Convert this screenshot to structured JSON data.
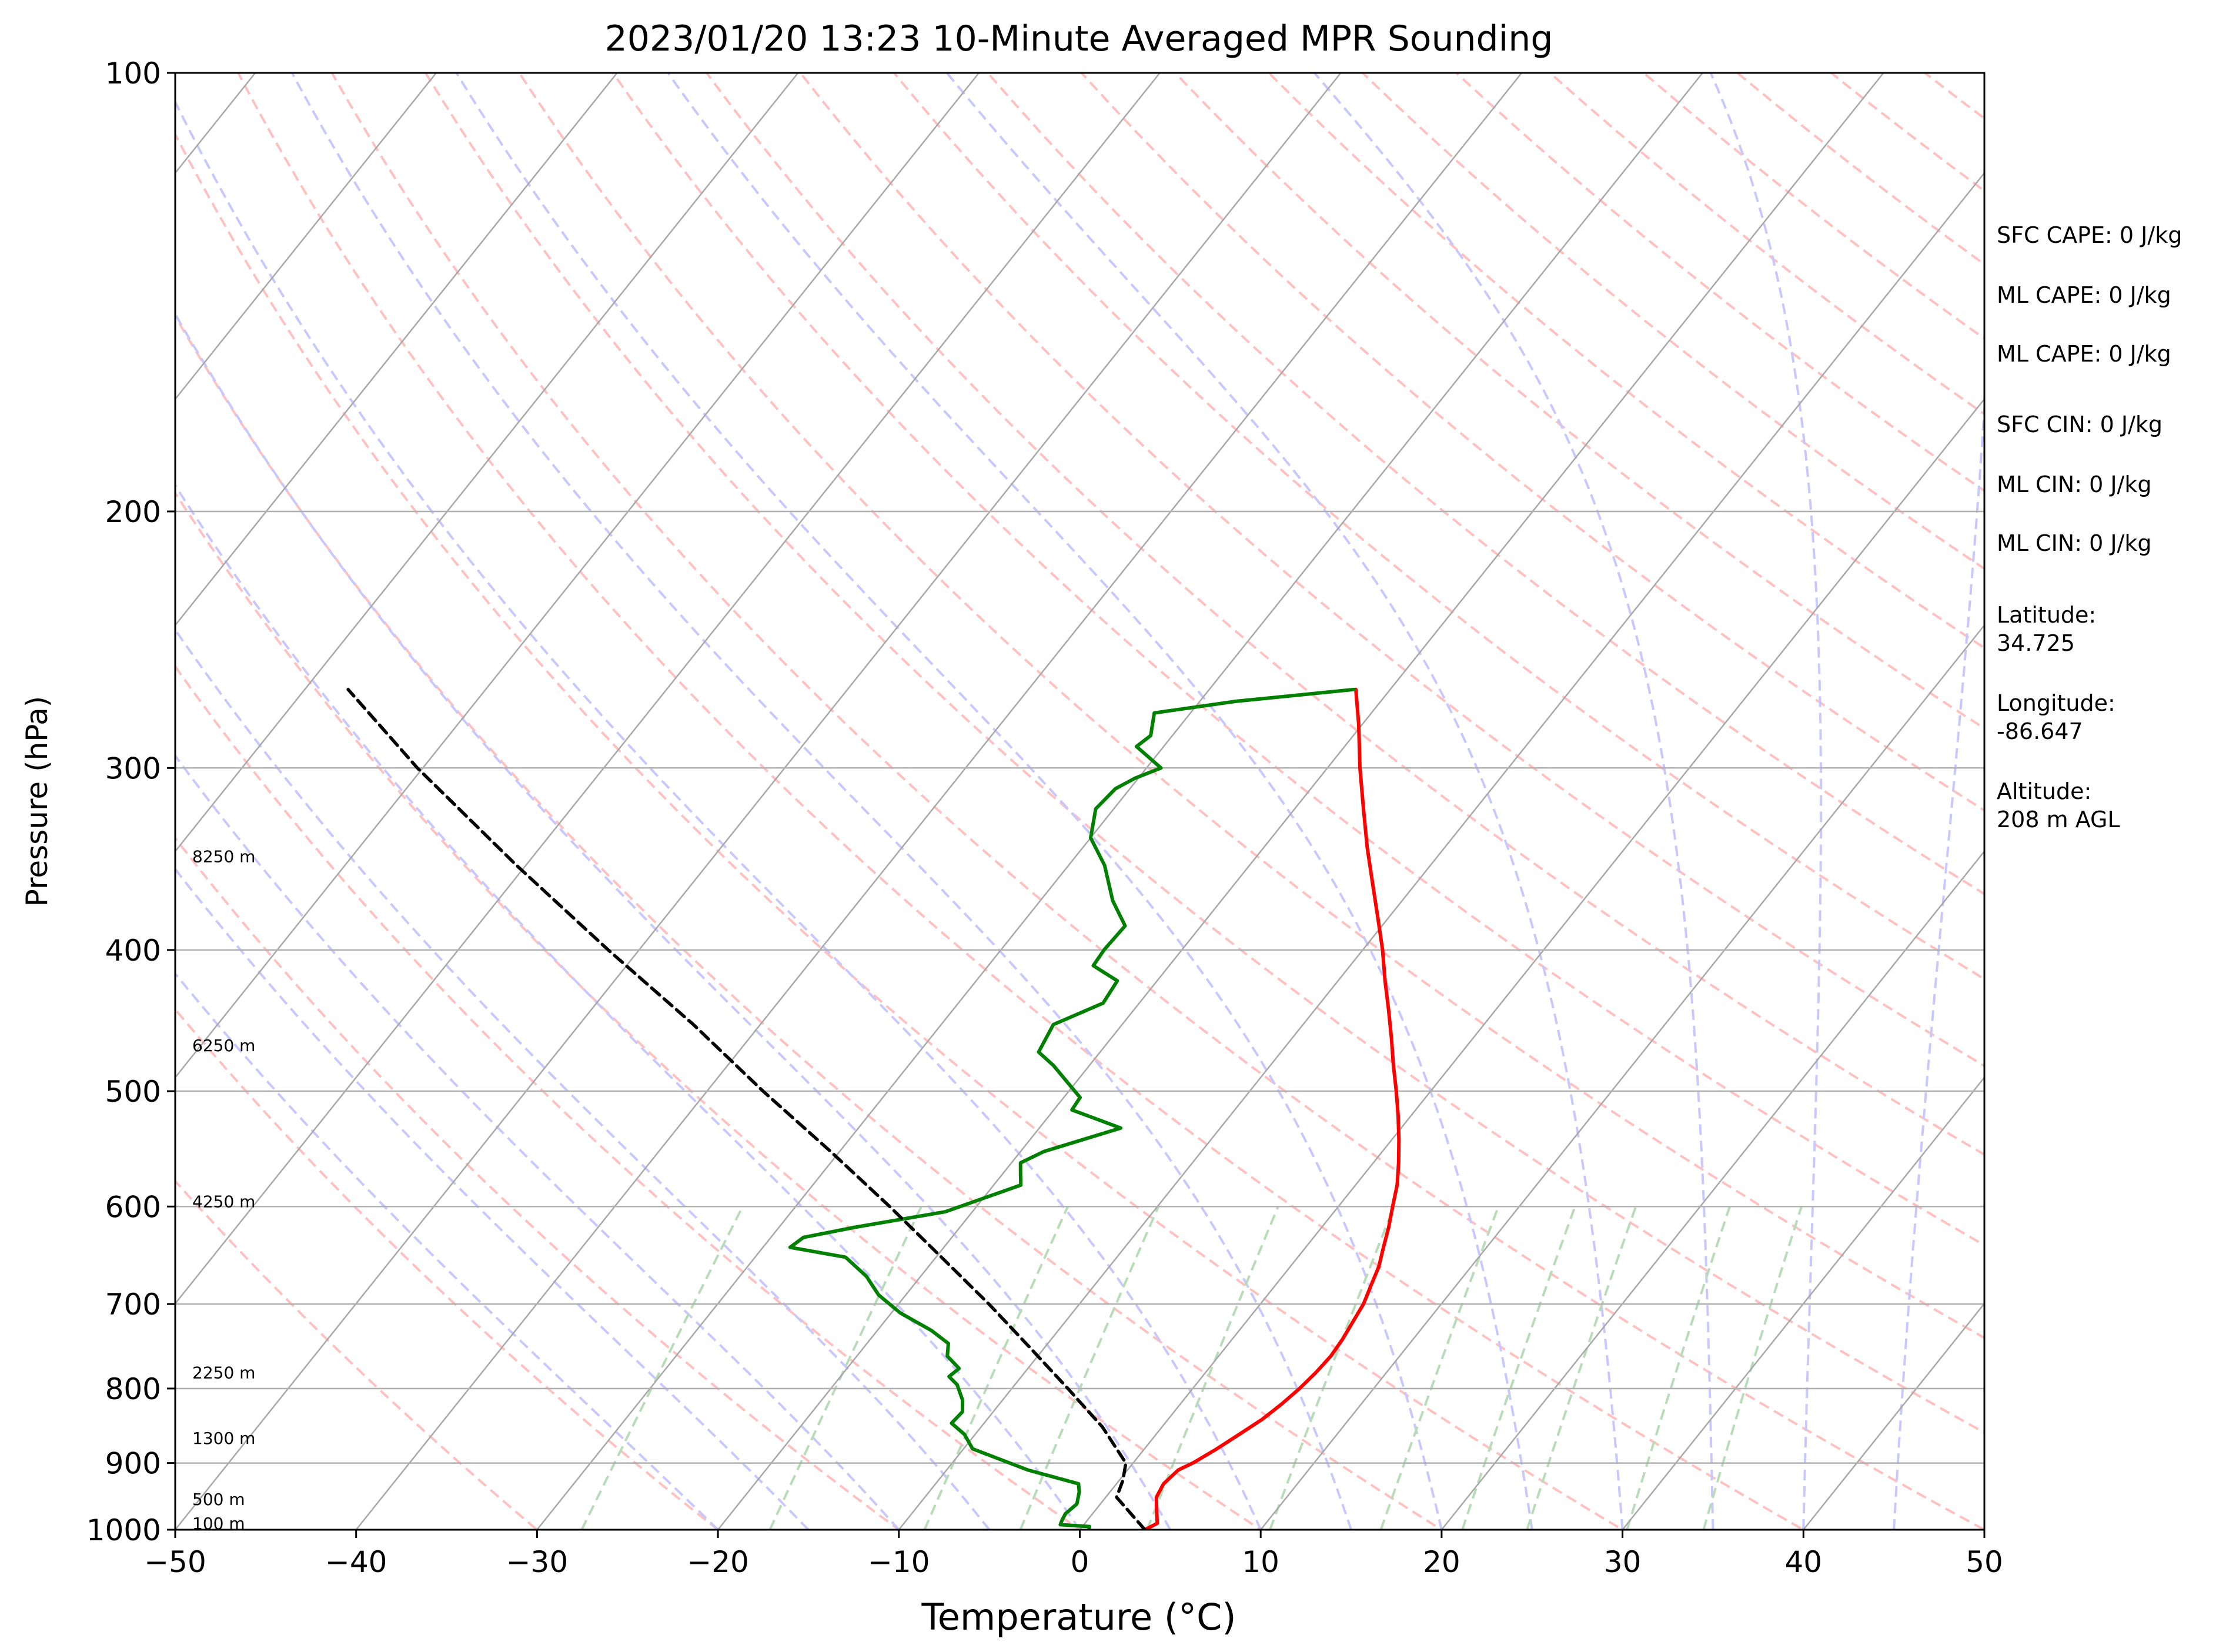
{
  "chart_data": {
    "type": "line",
    "title": "2023/01/20 13:23 10-Minute Averaged MPR Sounding",
    "xlabel": "Temperature (°C)",
    "ylabel": "Pressure (hPa)",
    "xlim": [
      -50,
      50
    ],
    "ylim": [
      1000,
      100
    ],
    "y_scale": "log",
    "x_ticks": [
      "−50",
      "−40",
      "−30",
      "−20",
      "−10",
      "0",
      "10",
      "20",
      "30",
      "40",
      "50"
    ],
    "y_ticks": [
      "100",
      "200",
      "300",
      "400",
      "500",
      "600",
      "700",
      "800",
      "900",
      "1000"
    ],
    "height_labels": [
      {
        "p": 990,
        "text": "100 m"
      },
      {
        "p": 953,
        "text": "500 m"
      },
      {
        "p": 865,
        "text": "1300 m"
      },
      {
        "p": 780,
        "text": "2250 m"
      },
      {
        "p": 595,
        "text": "4250 m"
      },
      {
        "p": 465,
        "text": "6250 m"
      },
      {
        "p": 345,
        "text": "8250 m"
      }
    ],
    "series": [
      {
        "role": "temperature",
        "color": "#ff0000",
        "points": [
          [
            1000,
            3.6
          ],
          [
            990,
            4.0
          ],
          [
            970,
            3.4
          ],
          [
            950,
            2.8
          ],
          [
            930,
            2.6
          ],
          [
            910,
            2.8
          ],
          [
            900,
            3.3
          ],
          [
            880,
            4.0
          ],
          [
            860,
            4.6
          ],
          [
            840,
            5.2
          ],
          [
            820,
            5.6
          ],
          [
            800,
            5.9
          ],
          [
            780,
            6.1
          ],
          [
            760,
            6.2
          ],
          [
            740,
            6.1
          ],
          [
            720,
            5.9
          ],
          [
            700,
            5.7
          ],
          [
            680,
            5.3
          ],
          [
            660,
            4.9
          ],
          [
            640,
            4.3
          ],
          [
            620,
            3.7
          ],
          [
            600,
            3.0
          ],
          [
            580,
            2.3
          ],
          [
            560,
            1.4
          ],
          [
            540,
            0.4
          ],
          [
            520,
            -0.7
          ],
          [
            500,
            -1.9
          ],
          [
            480,
            -3.2
          ],
          [
            460,
            -4.5
          ],
          [
            440,
            -5.9
          ],
          [
            420,
            -7.4
          ],
          [
            400,
            -8.9
          ],
          [
            380,
            -10.6
          ],
          [
            360,
            -12.4
          ],
          [
            340,
            -14.3
          ],
          [
            320,
            -16.2
          ],
          [
            300,
            -18.2
          ],
          [
            280,
            -20.2
          ],
          [
            265,
            -21.9
          ]
        ]
      },
      {
        "role": "dewpoint",
        "color": "#008000",
        "points": [
          [
            1000,
            0.5
          ],
          [
            995,
            0.4
          ],
          [
            992,
            -1.3
          ],
          [
            985,
            -1.4
          ],
          [
            975,
            -1.5
          ],
          [
            960,
            -1.3
          ],
          [
            942,
            -1.7
          ],
          [
            930,
            -2.1
          ],
          [
            910,
            -5.5
          ],
          [
            880,
            -9.5
          ],
          [
            860,
            -10.6
          ],
          [
            845,
            -11.8
          ],
          [
            830,
            -11.7
          ],
          [
            815,
            -12.2
          ],
          [
            795,
            -13.2
          ],
          [
            785,
            -14.0
          ],
          [
            775,
            -13.8
          ],
          [
            760,
            -15.0
          ],
          [
            745,
            -15.5
          ],
          [
            730,
            -17.0
          ],
          [
            710,
            -19.5
          ],
          [
            690,
            -21.5
          ],
          [
            670,
            -23.0
          ],
          [
            650,
            -25.0
          ],
          [
            640,
            -28.5
          ],
          [
            630,
            -28.2
          ],
          [
            620,
            -25.8
          ],
          [
            605,
            -21.5
          ],
          [
            580,
            -18.5
          ],
          [
            570,
            -19.0
          ],
          [
            560,
            -19.5
          ],
          [
            550,
            -18.7
          ],
          [
            530,
            -15.5
          ],
          [
            515,
            -19.0
          ],
          [
            505,
            -19.1
          ],
          [
            480,
            -22.0
          ],
          [
            470,
            -23.4
          ],
          [
            450,
            -23.8
          ],
          [
            435,
            -22.0
          ],
          [
            420,
            -22.2
          ],
          [
            410,
            -24.2
          ],
          [
            400,
            -24.3
          ],
          [
            385,
            -24.2
          ],
          [
            370,
            -26.0
          ],
          [
            350,
            -28.0
          ],
          [
            335,
            -30.0
          ],
          [
            320,
            -31.0
          ],
          [
            310,
            -30.8
          ],
          [
            305,
            -30.2
          ],
          [
            300,
            -29.2
          ],
          [
            290,
            -31.5
          ],
          [
            285,
            -31.2
          ],
          [
            280,
            -31.6
          ],
          [
            275,
            -32.0
          ],
          [
            270,
            -28.0
          ],
          [
            265,
            -22.0
          ]
        ]
      },
      {
        "role": "parcel",
        "color": "#000000",
        "style": "dashed",
        "points": [
          [
            1000,
            3.6
          ],
          [
            950,
            0.6
          ],
          [
            925,
            0.2
          ],
          [
            900,
            -0.4
          ],
          [
            850,
            -3.3
          ],
          [
            800,
            -6.9
          ],
          [
            750,
            -10.8
          ],
          [
            700,
            -15.0
          ],
          [
            650,
            -19.7
          ],
          [
            600,
            -24.8
          ],
          [
            550,
            -30.5
          ],
          [
            500,
            -36.9
          ],
          [
            450,
            -43.7
          ],
          [
            400,
            -51.7
          ],
          [
            350,
            -60.5
          ],
          [
            300,
            -70.3
          ],
          [
            265,
            -77.6
          ]
        ]
      }
    ],
    "background_lines": {
      "isotherm_color": "#a8a8a8",
      "dry_adiabat_color": "#ffc0c0",
      "moist_adiabat_color": "#c8c8ff",
      "mixing_ratio_color": "#b8dcb8"
    }
  },
  "info_panel": {
    "sfc_cape": "SFC CAPE: 0 J/kg",
    "ml_cape_1": "ML CAPE: 0 J/kg",
    "ml_cape_2": "ML CAPE: 0 J/kg",
    "sfc_cin": "SFC CIN: 0 J/kg",
    "ml_cin_1": "ML CIN: 0 J/kg",
    "ml_cin_2": "ML CIN: 0 J/kg",
    "latitude": "Latitude:\n34.725",
    "longitude": "Longitude:\n-86.647",
    "altitude": "Altitude:\n208 m AGL"
  }
}
